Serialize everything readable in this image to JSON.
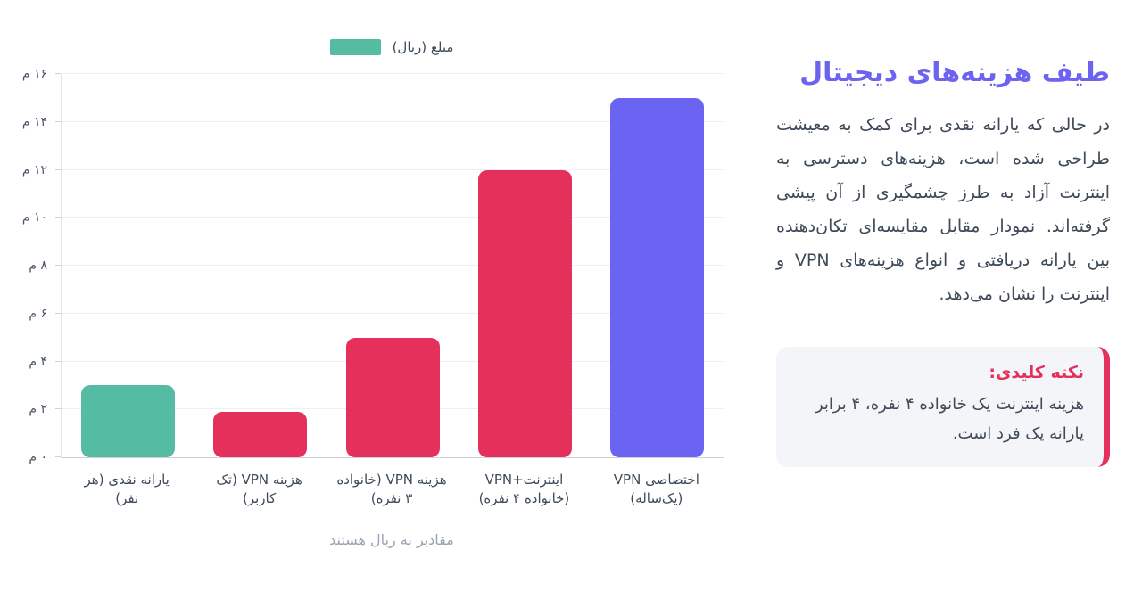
{
  "panel": {
    "title": "طیف هزینه‌های دیجیتال",
    "accent_color": "#6c63f0",
    "description": "در حالی که یارانه نقدی برای کمک به معیشت طراحی شده است، هزینه‌های دسترسی به اینترنت آزاد به طرز چشمگیری از آن پیشی گرفته‌اند. نمودار مقابل مقایسه‌ای تکان‌دهنده بین یارانه دریافتی و انواع هزینه‌های VPN و اینترنت را نشان می‌دهد.",
    "note": {
      "title": "نکته کلیدی:",
      "body": "هزینه اینترنت یک خانواده ۴ نفره، ۴ برابر یارانه یک فرد است.",
      "accent_color": "#e5305b",
      "background_color": "#f3f5f8"
    }
  },
  "chart_data": {
    "type": "bar",
    "legend_label": "مبلغ (ریال)",
    "legend_position": "top",
    "caption": "مقادیر به ریال هستند",
    "unit": "میلیون ریال (م)",
    "categories": [
      "یارانه نقدی (هر نفر)",
      "هزینه VPN (تک کاربر)",
      "هزینه VPN (خانواده ۳ نفره)",
      "اینترنت+VPN (خانواده ۴ نفره)",
      "اختصاصی VPN (یک‌ساله)"
    ],
    "values": [
      3,
      1.9,
      5,
      12,
      15
    ],
    "bar_colors": [
      "#55bba3",
      "#e5305b",
      "#e5305b",
      "#e5305b",
      "#6b64f3"
    ],
    "xlabel": "مقادیر به ریال هستند",
    "ylabel": "",
    "ylim": [
      0,
      16
    ],
    "y_ticks": [
      0,
      2,
      4,
      6,
      8,
      10,
      12,
      14,
      16
    ],
    "y_tick_labels": [
      "۰ م",
      "۲ م",
      "۴ م",
      "۶ م",
      "۸ م",
      "۱۰ م",
      "۱۲ م",
      "۱۴ م",
      "۱۶ م"
    ],
    "grid": true
  }
}
